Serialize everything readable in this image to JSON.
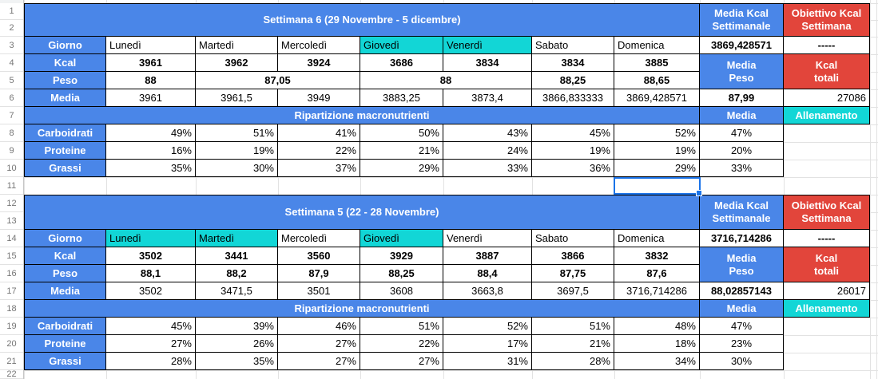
{
  "sheet": {
    "colors": {
      "blue": "#4a86e8",
      "cyan": "#12d6d6",
      "red": "#e2453b",
      "selection": "#1a73e8",
      "gridline": "#e2e2e2",
      "header_border": "#c6c6c6",
      "header_text": "#757575"
    },
    "row_numbers": [
      "1",
      "2",
      "3",
      "4",
      "5",
      "6",
      "7",
      "8",
      "9",
      "10",
      "11",
      "12",
      "13",
      "14",
      "15",
      "16",
      "17",
      "18",
      "19",
      "20",
      "21",
      "22"
    ],
    "labels": {
      "giorno": "Giorno",
      "kcal": "Kcal",
      "peso": "Peso",
      "media": "Media",
      "media_kcal_header": "Media Kcal\nSettimanale",
      "obiettivo_header": "Obiettivo Kcal\nSettimana",
      "media_peso": "Media\nPeso",
      "kcal_totali": "Kcal\ntotali",
      "ripartizione": "Ripartizione macronutrienti",
      "allenamento": "Allenamento"
    },
    "weeks": [
      {
        "title": "Settimana 6 (29 Novembre - 5 dicembre)",
        "days": [
          {
            "label": "Lunedì",
            "highlight": false
          },
          {
            "label": "Martedì",
            "highlight": false
          },
          {
            "label": "Mercoledì",
            "highlight": false
          },
          {
            "label": "Giovedì",
            "highlight": true
          },
          {
            "label": "Venerdì",
            "highlight": true
          },
          {
            "label": "Sabato",
            "highlight": false
          },
          {
            "label": "Domenica",
            "highlight": false
          }
        ],
        "media_kcal_value": "3869,428571",
        "obiettivo_value": "-----",
        "kcal": [
          "3961",
          "3962",
          "3924",
          "3686",
          "3834",
          "3834",
          "3885"
        ],
        "peso_cells": [
          {
            "value": "88",
            "span": 1
          },
          {
            "value": "87,05",
            "span": 2
          },
          {
            "value": "88",
            "span": 2
          },
          {
            "value": "88,25",
            "span": 1
          },
          {
            "value": "88,65",
            "span": 1
          }
        ],
        "media": [
          "3961",
          "3961,5",
          "3949",
          "3883,25",
          "3873,4",
          "3866,833333",
          "3869,428571"
        ],
        "media_peso_value": "87,99",
        "kcal_totali_value": "27086",
        "macros": [
          {
            "label": "Carboidrati",
            "values": [
              "49%",
              "51%",
              "41%",
              "50%",
              "43%",
              "45%",
              "52%"
            ],
            "media": "47%"
          },
          {
            "label": "Proteine",
            "values": [
              "16%",
              "19%",
              "22%",
              "21%",
              "24%",
              "19%",
              "19%"
            ],
            "media": "20%"
          },
          {
            "label": "Grassi",
            "values": [
              "35%",
              "30%",
              "37%",
              "29%",
              "33%",
              "36%",
              "29%"
            ],
            "media": "33%"
          }
        ]
      },
      {
        "title": "Settimana 5 (22 - 28 Novembre)",
        "days": [
          {
            "label": "Lunedì",
            "highlight": true
          },
          {
            "label": "Martedì",
            "highlight": true
          },
          {
            "label": "Mercoledì",
            "highlight": false
          },
          {
            "label": "Giovedì",
            "highlight": true
          },
          {
            "label": "Venerdì",
            "highlight": false
          },
          {
            "label": "Sabato",
            "highlight": false
          },
          {
            "label": "Domenica",
            "highlight": false
          }
        ],
        "media_kcal_value": "3716,714286",
        "obiettivo_value": "-----",
        "kcal": [
          "3502",
          "3441",
          "3560",
          "3929",
          "3887",
          "3866",
          "3832"
        ],
        "peso_cells": [
          {
            "value": "88,1",
            "span": 1
          },
          {
            "value": "88,2",
            "span": 1
          },
          {
            "value": "87,9",
            "span": 1
          },
          {
            "value": "88,25",
            "span": 1
          },
          {
            "value": "88,4",
            "span": 1
          },
          {
            "value": "87,75",
            "span": 1
          },
          {
            "value": "87,6",
            "span": 1
          }
        ],
        "media": [
          "3502",
          "3471,5",
          "3501",
          "3608",
          "3663,8",
          "3697,5",
          "3716,714286"
        ],
        "media_peso_value": "88,02857143",
        "kcal_totali_value": "26017",
        "macros": [
          {
            "label": "Carboidrati",
            "values": [
              "45%",
              "39%",
              "46%",
              "51%",
              "52%",
              "51%",
              "48%"
            ],
            "media": "47%"
          },
          {
            "label": "Proteine",
            "values": [
              "27%",
              "26%",
              "27%",
              "22%",
              "17%",
              "21%",
              "18%"
            ],
            "media": "23%"
          },
          {
            "label": "Grassi",
            "values": [
              "28%",
              "35%",
              "27%",
              "27%",
              "31%",
              "28%",
              "34%"
            ],
            "media": "30%"
          }
        ]
      }
    ]
  }
}
